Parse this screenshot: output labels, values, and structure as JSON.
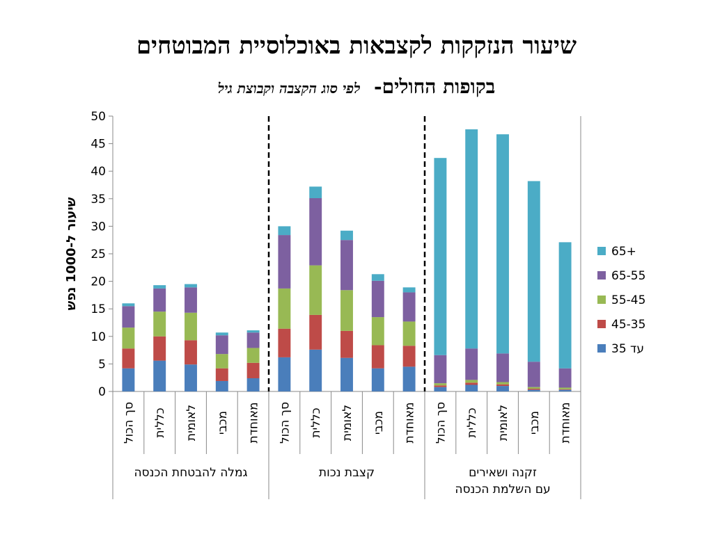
{
  "title_line1": "שיעור הנזקקות לקצבאות  באוכלוסיית המבוטחים",
  "title_line2_main": "בקופות החולים-",
  "title_line2_sub": "לפי סוג הקצבה וקבוצת גיל",
  "chart_data": {
    "type": "bar",
    "stacked": true,
    "ylabel": "שיעור ל-1000 נפש",
    "ylim": [
      0,
      50
    ],
    "yticks": [
      0,
      5,
      10,
      15,
      20,
      25,
      30,
      35,
      40,
      45,
      50
    ],
    "legend_position": "right",
    "groups": [
      {
        "label": [
          "גמלה להבטחת הכנסה"
        ],
        "categories": [
          "סך הכול",
          "כללית",
          "לאומית",
          "מכבי",
          "מאוחדת"
        ]
      },
      {
        "label": [
          "קצבת נכות"
        ],
        "categories": [
          "סך הכול",
          "כללית",
          "לאומית",
          "מכבי",
          "מאוחדת"
        ]
      },
      {
        "label": [
          "זקנה ושאירים",
          "עם השלמת הכנסה"
        ],
        "categories": [
          "סך הכול",
          "כללית",
          "לאומית",
          "מכבי",
          "מאוחדת"
        ]
      }
    ],
    "series": [
      {
        "name": "עד 35",
        "color": "#4A7EBB",
        "values": [
          4.2,
          5.6,
          4.9,
          1.9,
          2.4,
          6.2,
          7.6,
          6.1,
          4.2,
          4.5,
          0.8,
          1.2,
          1.0,
          0.3,
          0.3
        ]
      },
      {
        "name": "45-35",
        "color": "#BE4B48",
        "values": [
          3.6,
          4.4,
          4.4,
          2.3,
          2.8,
          5.2,
          6.3,
          4.9,
          4.2,
          3.8,
          0.3,
          0.4,
          0.3,
          0.2,
          0.1
        ]
      },
      {
        "name": "55-45",
        "color": "#98B954",
        "values": [
          3.8,
          4.5,
          5.0,
          2.6,
          2.7,
          7.3,
          9.0,
          7.4,
          5.1,
          4.4,
          0.4,
          0.5,
          0.4,
          0.3,
          0.3
        ]
      },
      {
        "name": "65-55",
        "color": "#7D60A0",
        "values": [
          3.9,
          4.2,
          4.6,
          3.4,
          2.8,
          9.7,
          12.2,
          9.1,
          6.6,
          5.3,
          5.1,
          5.7,
          5.2,
          4.6,
          3.5
        ]
      },
      {
        "name": "65+",
        "color": "#4BACC6",
        "values": [
          0.5,
          0.6,
          0.6,
          0.5,
          0.4,
          1.6,
          2.1,
          1.7,
          1.2,
          0.9,
          35.8,
          39.8,
          39.8,
          32.8,
          22.9
        ]
      }
    ],
    "legend_order": [
      "65+",
      "65-55",
      "55-45",
      "45-35",
      "עד 35"
    ]
  }
}
